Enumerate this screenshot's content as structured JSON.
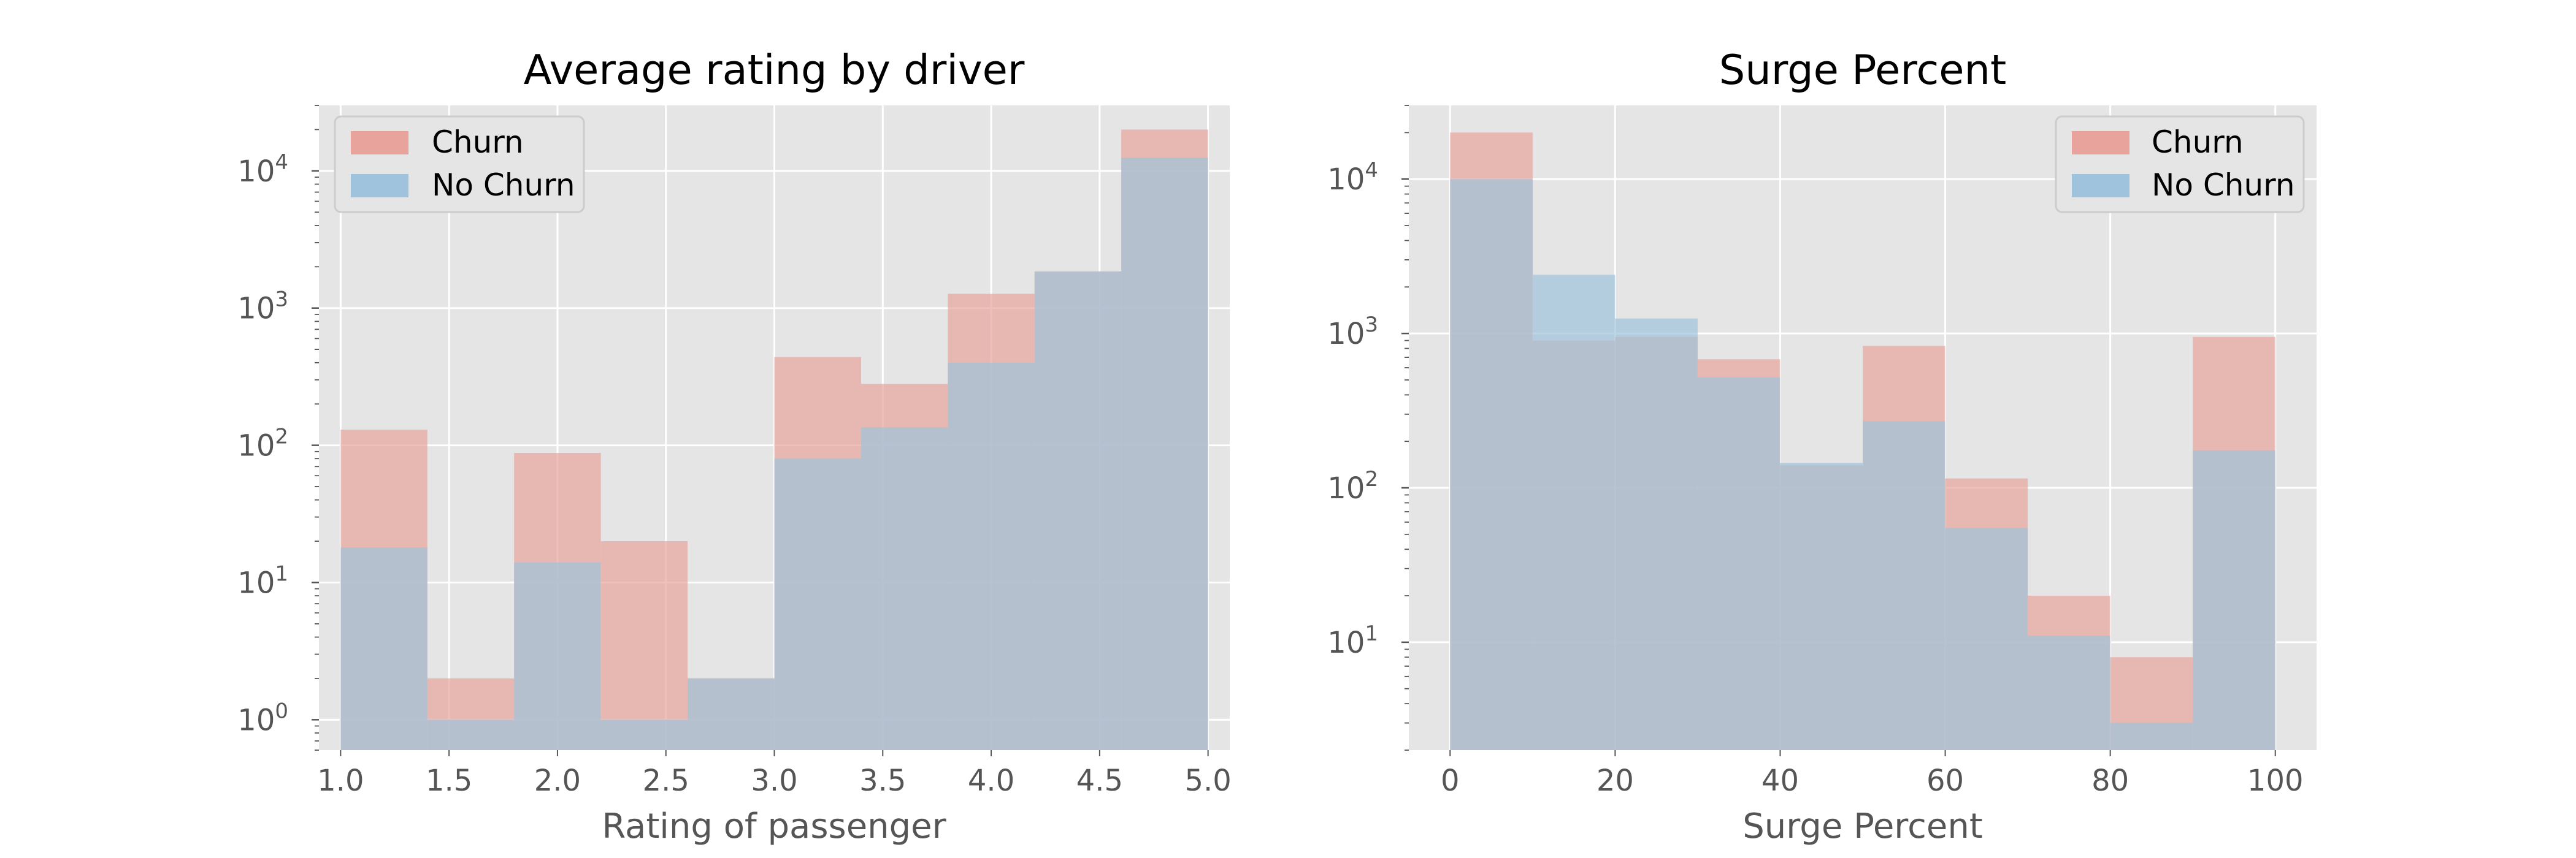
{
  "chart_data": [
    {
      "type": "bar",
      "title": "Average rating by driver",
      "xlabel": "Rating of passenger",
      "ylabel": "",
      "yscale": "log",
      "xlim": [
        0.9,
        5.1
      ],
      "ylim": [
        0.6,
        30000
      ],
      "grid": true,
      "legend_position": "upper left",
      "x_ticks": [
        1.0,
        1.5,
        2.0,
        2.5,
        3.0,
        3.5,
        4.0,
        4.5,
        5.0
      ],
      "x_tick_labels": [
        "1.0",
        "1.5",
        "2.0",
        "2.5",
        "3.0",
        "3.5",
        "4.0",
        "4.5",
        "5.0"
      ],
      "y_ticks": [
        1,
        10,
        100,
        1000,
        10000
      ],
      "y_tick_labels": [
        {
          "base": "10",
          "exp": "0"
        },
        {
          "base": "10",
          "exp": "1"
        },
        {
          "base": "10",
          "exp": "2"
        },
        {
          "base": "10",
          "exp": "3"
        },
        {
          "base": "10",
          "exp": "4"
        }
      ],
      "bin_edges": [
        1.0,
        1.4,
        1.8,
        2.2,
        2.6,
        3.0,
        3.4,
        3.8,
        4.2,
        4.6,
        5.0
      ],
      "series": [
        {
          "name": "Churn",
          "color": "#e8a49c",
          "values": [
            130,
            2,
            88,
            20,
            2,
            440,
            280,
            1270,
            1850,
            20000
          ]
        },
        {
          "name": "No Churn",
          "color": "#9fc3dc",
          "values": [
            18,
            1,
            14,
            1,
            2,
            80,
            135,
            400,
            1850,
            12500
          ]
        }
      ]
    },
    {
      "type": "bar",
      "title": "Surge Percent",
      "xlabel": "Surge Percent",
      "ylabel": "",
      "yscale": "log",
      "xlim": [
        -5,
        105
      ],
      "ylim": [
        2,
        30000
      ],
      "grid": true,
      "legend_position": "upper right",
      "x_ticks": [
        0,
        20,
        40,
        60,
        80,
        100
      ],
      "x_tick_labels": [
        "0",
        "20",
        "40",
        "60",
        "80",
        "100"
      ],
      "y_ticks": [
        10,
        100,
        1000,
        10000
      ],
      "y_tick_labels": [
        {
          "base": "10",
          "exp": "1"
        },
        {
          "base": "10",
          "exp": "2"
        },
        {
          "base": "10",
          "exp": "3"
        },
        {
          "base": "10",
          "exp": "4"
        }
      ],
      "bin_edges": [
        0,
        10,
        20,
        30,
        40,
        50,
        60,
        70,
        80,
        90,
        100
      ],
      "series": [
        {
          "name": "Churn",
          "color": "#e8a49c",
          "values": [
            20000,
            900,
            950,
            680,
            140,
            830,
            115,
            20,
            8,
            950
          ]
        },
        {
          "name": "No Churn",
          "color": "#9fc3dc",
          "values": [
            10000,
            2400,
            1250,
            520,
            145,
            270,
            55,
            11,
            3,
            175
          ]
        }
      ]
    }
  ],
  "colors": {
    "axes_background": "#e5e5e5",
    "grid": "#ffffff",
    "churn": "#e8a49c",
    "no_churn": "#9fc3dc",
    "overlap": "#aba4ad"
  }
}
